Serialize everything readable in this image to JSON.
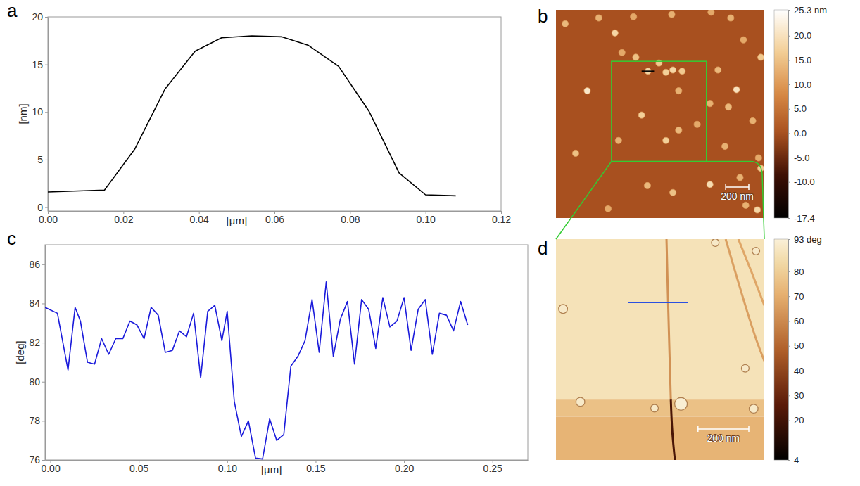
{
  "chart_data": [
    {
      "type": "line",
      "panel_label": "a",
      "x_label": "[µm]",
      "y_label": "[nm]",
      "color": "#000000",
      "grid": false,
      "x": [
        0,
        0.015,
        0.023,
        0.031,
        0.039,
        0.046,
        0.054,
        0.062,
        0.069,
        0.077,
        0.085,
        0.093,
        0.1,
        0.108
      ],
      "values": [
        1.6,
        1.8,
        6.1,
        12.4,
        16.4,
        17.8,
        18.0,
        17.9,
        17.0,
        14.8,
        10.1,
        3.6,
        1.3,
        1.2
      ],
      "xlim": [
        0,
        0.12
      ],
      "xticks": [
        {
          "value": 0,
          "label": "0.00"
        },
        {
          "value": 0.02,
          "label": "0.02"
        },
        {
          "value": 0.04,
          "label": "0.04"
        },
        {
          "value": 0.06,
          "label": "0.06"
        },
        {
          "value": 0.08,
          "label": "0.08"
        },
        {
          "value": 0.1,
          "label": "0.10"
        },
        {
          "value": 0.12,
          "label": "0.12"
        }
      ],
      "ylim": [
        -0.4,
        20
      ],
      "yticks": [
        0,
        5,
        10,
        15,
        20
      ]
    },
    {
      "type": "image",
      "panel_label": "b",
      "xlim": [
        0,
        1800
      ],
      "ylim": [
        0,
        1800
      ],
      "background": 0,
      "particles": {
        "x": [
          80,
          370,
          510,
          670,
          1000,
          1340,
          1510,
          570,
          690,
          795,
          890,
          950,
          1010,
          1090,
          1400,
          1620,
          1770,
          270,
          1060,
          1560,
          1330,
          1490,
          1700,
          740,
          1220,
          1060,
          950,
          540,
          170,
          1750,
          1770,
          1590,
          1330,
          790,
          1010,
          450,
          1640,
          1740,
          1460
        ],
        "y": [
          120,
          70,
          200,
          60,
          40,
          20,
          70,
          370,
          410,
          530,
          460,
          540,
          520,
          530,
          520,
          260,
          410,
          700,
          700,
          690,
          810,
          840,
          960,
          910,
          990,
          1040,
          1130,
          1130,
          1240,
          1280,
          1370,
          1450,
          1510,
          1520,
          1580,
          1720,
          1690,
          1730,
          1180
        ],
        "height": [
          14,
          13,
          18,
          12,
          13,
          12,
          13,
          12,
          15,
          18,
          16,
          17,
          18,
          16,
          14,
          12,
          16,
          21,
          13,
          20,
          13,
          14,
          13,
          17,
          12,
          14,
          17,
          13,
          15,
          12,
          16,
          13,
          19,
          14,
          15,
          12,
          13,
          18,
          13
        ]
      },
      "profile_line": {
        "x": [
          740,
          848
        ],
        "y": [
          530,
          530
        ],
        "color": "#000000"
      },
      "zoom_box": {
        "x": [
          480,
          1300
        ],
        "y": [
          445,
          1310
        ],
        "color": "#33cc33"
      },
      "scale_bar": {
        "value": 200,
        "label": "200 nm"
      },
      "colorbar": {
        "range": [
          -17.4,
          25.3
        ],
        "ticks": [
          {
            "value": -17.4,
            "label": "-17.4"
          },
          {
            "value": -10,
            "label": "-10.0"
          },
          {
            "value": -5,
            "label": "-5.0"
          },
          {
            "value": 0,
            "label": "0.0"
          },
          {
            "value": 5,
            "label": "5.0"
          },
          {
            "value": 10,
            "label": "10.0"
          },
          {
            "value": 15,
            "label": "15.0"
          },
          {
            "value": 20,
            "label": "20.0"
          },
          {
            "value": 25.3,
            "label": "25.3 nm"
          }
        ]
      }
    },
    {
      "type": "line",
      "panel_label": "c",
      "x_label": "[µm]",
      "y_label": "[deg]",
      "color": "#1a1adb",
      "grid": false,
      "x": [
        -0.003,
        0.004,
        0.01,
        0.014,
        0.017,
        0.021,
        0.025,
        0.029,
        0.033,
        0.037,
        0.041,
        0.045,
        0.049,
        0.053,
        0.057,
        0.061,
        0.065,
        0.069,
        0.073,
        0.077,
        0.081,
        0.085,
        0.089,
        0.093,
        0.097,
        0.1,
        0.104,
        0.108,
        0.112,
        0.116,
        0.12,
        0.124,
        0.128,
        0.132,
        0.136,
        0.14,
        0.144,
        0.148,
        0.152,
        0.156,
        0.16,
        0.164,
        0.168,
        0.172,
        0.176,
        0.18,
        0.184,
        0.188,
        0.192,
        0.196,
        0.2,
        0.204,
        0.208,
        0.212,
        0.216,
        0.22,
        0.224,
        0.228,
        0.232,
        0.236
      ],
      "values": [
        83.8,
        83.5,
        80.6,
        83.8,
        83.1,
        81.0,
        80.9,
        82.2,
        81.4,
        82.2,
        82.2,
        83.1,
        82.9,
        82.2,
        83.8,
        83.4,
        81.5,
        81.6,
        82.6,
        82.3,
        83.5,
        80.2,
        83.6,
        83.9,
        82.1,
        83.6,
        79.0,
        77.2,
        78.0,
        76.1,
        76.05,
        78.1,
        77.0,
        77.3,
        80.8,
        81.3,
        82.1,
        84.2,
        81.5,
        85.1,
        81.3,
        83.2,
        84.1,
        80.9,
        84.2,
        83.7,
        81.7,
        84.3,
        82.8,
        83.1,
        84.3,
        81.6,
        83.7,
        84.2,
        81.4,
        83.5,
        83.4,
        82.6,
        84.1,
        82.9
      ],
      "xlim": [
        -0.003,
        0.27
      ],
      "xticks": [
        {
          "value": 0,
          "label": "0.00"
        },
        {
          "value": 0.05,
          "label": "0.05"
        },
        {
          "value": 0.1,
          "label": "0.10"
        },
        {
          "value": 0.15,
          "label": "0.15"
        },
        {
          "value": 0.2,
          "label": "0.20"
        },
        {
          "value": 0.25,
          "label": "0.25"
        }
      ],
      "ylim": [
        76,
        87
      ],
      "yticks": [
        76,
        78,
        80,
        82,
        84,
        86
      ]
    },
    {
      "type": "image",
      "panel_label": "d",
      "xlim": [
        0,
        820
      ],
      "ylim": [
        0,
        870
      ],
      "bands": [
        {
          "y": [
            0,
            632
          ],
          "value": 87
        },
        {
          "y": [
            632,
            700
          ],
          "value": 76
        },
        {
          "y": [
            700,
            870
          ],
          "value": 72
        }
      ],
      "boundaries": [
        {
          "x": [
            435,
            440,
            446,
            452
          ],
          "y": [
            0,
            200,
            420,
            632
          ],
          "value": 62
        },
        {
          "x": [
            452,
            458,
            468
          ],
          "y": [
            632,
            760,
            870
          ],
          "value": 22
        },
        {
          "x": [
            668,
            700,
            737,
            790,
            820
          ],
          "y": [
            0,
            110,
            234,
            400,
            480
          ],
          "value": 66
        },
        {
          "x": [
            718,
            770,
            820
          ],
          "y": [
            0,
            130,
            261
          ],
          "value": 68
        }
      ],
      "features": {
        "x": [
          28,
          627,
          787,
          492,
          96,
          388,
          745,
          778
        ],
        "y": [
          275,
          14,
          47,
          649,
          641,
          666,
          509,
          668
        ],
        "size": [
          35,
          30,
          30,
          50,
          35,
          30,
          30,
          35
        ],
        "value": [
          90,
          90,
          90,
          92,
          90,
          90,
          90,
          90
        ]
      },
      "profile_line": {
        "x": [
          283,
          520
        ],
        "y": [
          250,
          250
        ],
        "color": "#2b50e0"
      },
      "scale_bar": {
        "value": 200,
        "label": "200 nm"
      },
      "colorbar": {
        "range": [
          4,
          93
        ],
        "ticks": [
          4,
          20,
          30,
          40,
          50,
          60,
          70,
          80,
          {
            "value": 93,
            "label": "93 deg"
          }
        ]
      }
    }
  ]
}
